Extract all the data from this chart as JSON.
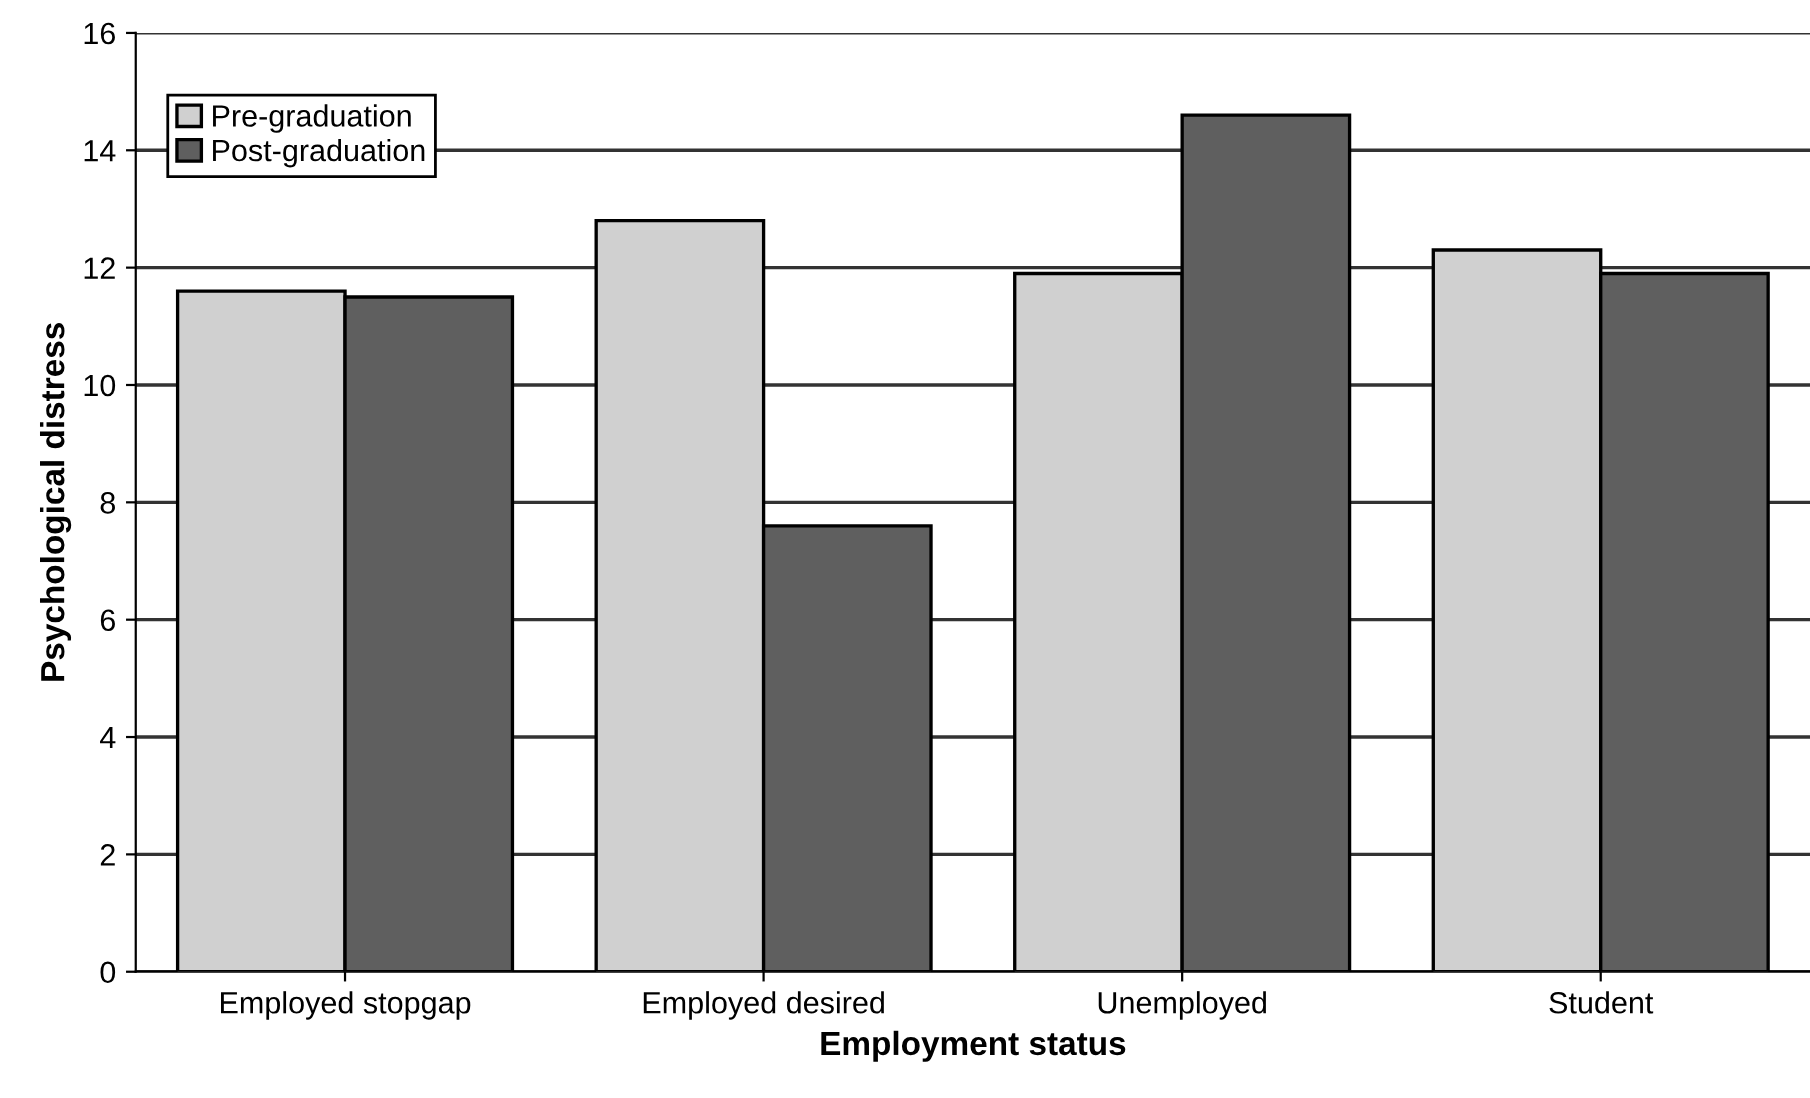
{
  "chart_data": {
    "type": "bar",
    "xlabel": "Employment status",
    "ylabel": "Psychological distress",
    "categories": [
      "Employed stopgap",
      "Employed desired",
      "Unemployed",
      "Student"
    ],
    "series": [
      {
        "name": "Pre-graduation",
        "color": "#d0d0d0",
        "values": [
          11.6,
          12.8,
          11.9,
          12.3
        ]
      },
      {
        "name": "Post-graduation",
        "color": "#5f5f5f",
        "values": [
          11.5,
          7.6,
          14.6,
          11.9
        ]
      }
    ],
    "ylim": [
      0,
      16
    ],
    "yticks": [
      0,
      2,
      4,
      6,
      8,
      10,
      12,
      14,
      16
    ],
    "grid": "y",
    "legend": "top left"
  }
}
